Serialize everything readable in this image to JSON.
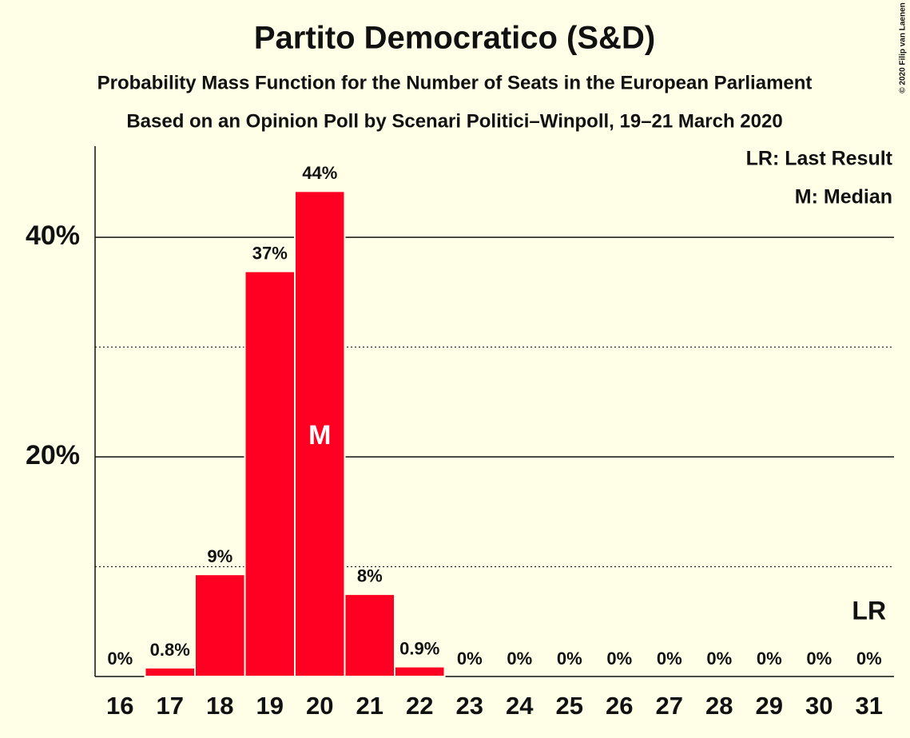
{
  "chart_data": {
    "type": "bar",
    "title": "Partito Democratico (S&D)",
    "subtitle": "Probability Mass Function for the Number of Seats in the European Parliament",
    "subtitle2": "Based on an Opinion Poll by Scenari Politici–Winpoll, 19–21 March 2020",
    "copyright": "© 2020 Filip van Laenen",
    "legend": [
      "LR: Last Result",
      "M: Median"
    ],
    "categories": [
      "16",
      "17",
      "18",
      "19",
      "20",
      "21",
      "22",
      "23",
      "24",
      "25",
      "26",
      "27",
      "28",
      "29",
      "30",
      "31"
    ],
    "values": [
      0,
      0.8,
      9.3,
      36.9,
      44.2,
      7.5,
      0.9,
      0,
      0,
      0,
      0,
      0,
      0,
      0,
      0,
      0
    ],
    "value_labels": [
      "0%",
      "0.8%",
      "9%",
      "37%",
      "44%",
      "8%",
      "0.9%",
      "0%",
      "0%",
      "0%",
      "0%",
      "0%",
      "0%",
      "0%",
      "0%",
      "0%"
    ],
    "color": "#ff0022",
    "ylim": [
      0,
      48.3
    ],
    "yticks": [
      {
        "value": 20,
        "label": "20%"
      },
      {
        "value": 40,
        "label": "40%"
      }
    ],
    "minor_yticks": [
      10,
      30
    ],
    "grid": true,
    "median": {
      "label": "M",
      "category": "20"
    },
    "last_result": {
      "label": "LR",
      "category": "31"
    }
  }
}
